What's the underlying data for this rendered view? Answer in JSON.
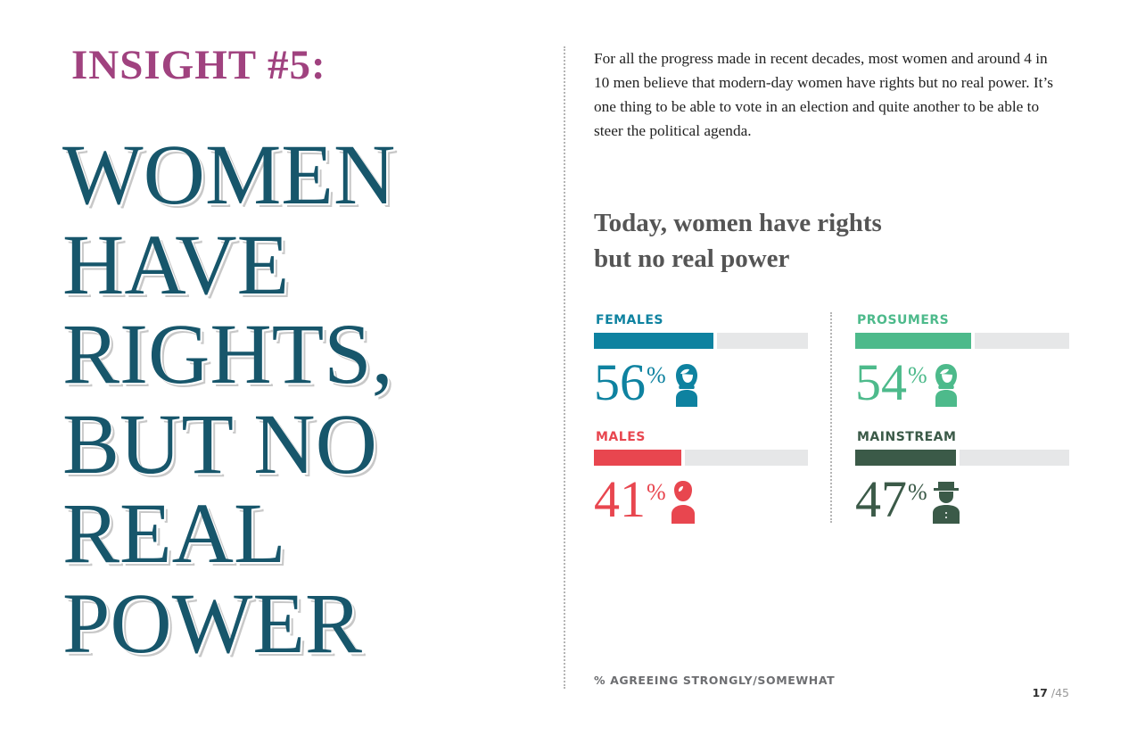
{
  "insight_label": "INSIGHT #5:",
  "headline_lines": [
    "WOMEN",
    "HAVE",
    "RIGHTS,",
    "BUT NO",
    "REAL",
    "POWER"
  ],
  "intro_text": "For all the progress made in recent decades, most women and around 4 in 10 men believe that modern-day women have rights but no real power. It’s one thing to be able to vote in an election and quite another to be able to steer the political agenda.",
  "chart_data": {
    "type": "bar",
    "title_lines": [
      "Today, women have rights",
      "but no real power"
    ],
    "categories": [
      "FEMALES",
      "PROSUMERS",
      "MALES",
      "MAINSTREAM"
    ],
    "values": [
      56,
      54,
      41,
      47
    ],
    "unit": "%",
    "ylim": [
      0,
      100
    ],
    "colors": [
      "#0e82a0",
      "#4dba8b",
      "#e8464f",
      "#3b5a48"
    ],
    "icons": [
      "woman-icon",
      "woman-icon",
      "man-icon",
      "man-with-hat-icon"
    ],
    "footnote": "% AGREEING STRONGLY/SOMEWHAT"
  },
  "page": {
    "current": "17",
    "total": "/45"
  },
  "colors": {
    "insight": "#a0427f",
    "headline": "#17566b",
    "track": "#e6e7e8"
  }
}
